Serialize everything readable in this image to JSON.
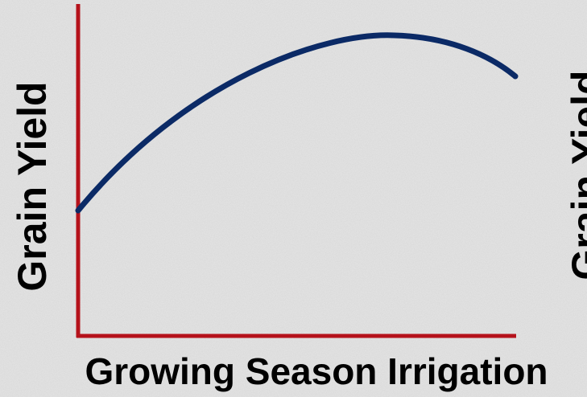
{
  "y_axis_labels": [
    "Grain Yield",
    "Grain Yield"
  ],
  "x_axis_label": "Growing Season Irrigation"
}
